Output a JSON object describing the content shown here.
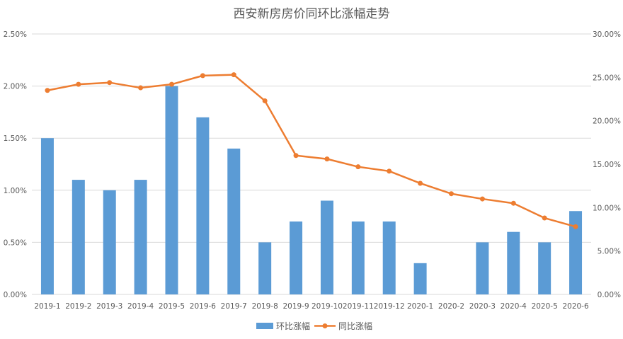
{
  "chart_data": {
    "type": "bar",
    "title": "西安新房房价同环比涨幅走势",
    "categories": [
      "2019-1",
      "2019-2",
      "2019-3",
      "2019-4",
      "2019-5",
      "2019-6",
      "2019-7",
      "2019-8",
      "2019-9",
      "2019-10",
      "2019-11",
      "2019-12",
      "2020-1",
      "2020-2",
      "2020-3",
      "2020-4",
      "2020-5",
      "2020-6"
    ],
    "series": [
      {
        "name": "环比涨幅",
        "type": "bar",
        "axis": "left",
        "color": "#5b9bd5",
        "values": [
          1.5,
          1.1,
          1.0,
          1.1,
          2.0,
          1.7,
          1.4,
          0.5,
          0.7,
          0.9,
          0.7,
          0.7,
          0.3,
          0.0,
          0.5,
          0.6,
          0.5,
          0.8
        ]
      },
      {
        "name": "同比涨幅",
        "type": "line",
        "axis": "right",
        "color": "#ed7d31",
        "values": [
          23.5,
          24.2,
          24.4,
          23.8,
          24.2,
          25.2,
          25.3,
          22.3,
          16.0,
          15.6,
          14.7,
          14.2,
          12.8,
          11.6,
          11.0,
          10.5,
          8.8,
          7.8
        ]
      }
    ],
    "y_left": {
      "ylim": [
        0,
        2.5
      ],
      "ticks": [
        "0.00%",
        "0.50%",
        "1.00%",
        "1.50%",
        "2.00%",
        "2.50%"
      ]
    },
    "y_right": {
      "ylim": [
        0,
        30
      ],
      "ticks": [
        "0.00%",
        "5.00%",
        "10.00%",
        "15.00%",
        "20.00%",
        "25.00%",
        "30.00%"
      ]
    },
    "grid": true,
    "legend": "bottom"
  }
}
